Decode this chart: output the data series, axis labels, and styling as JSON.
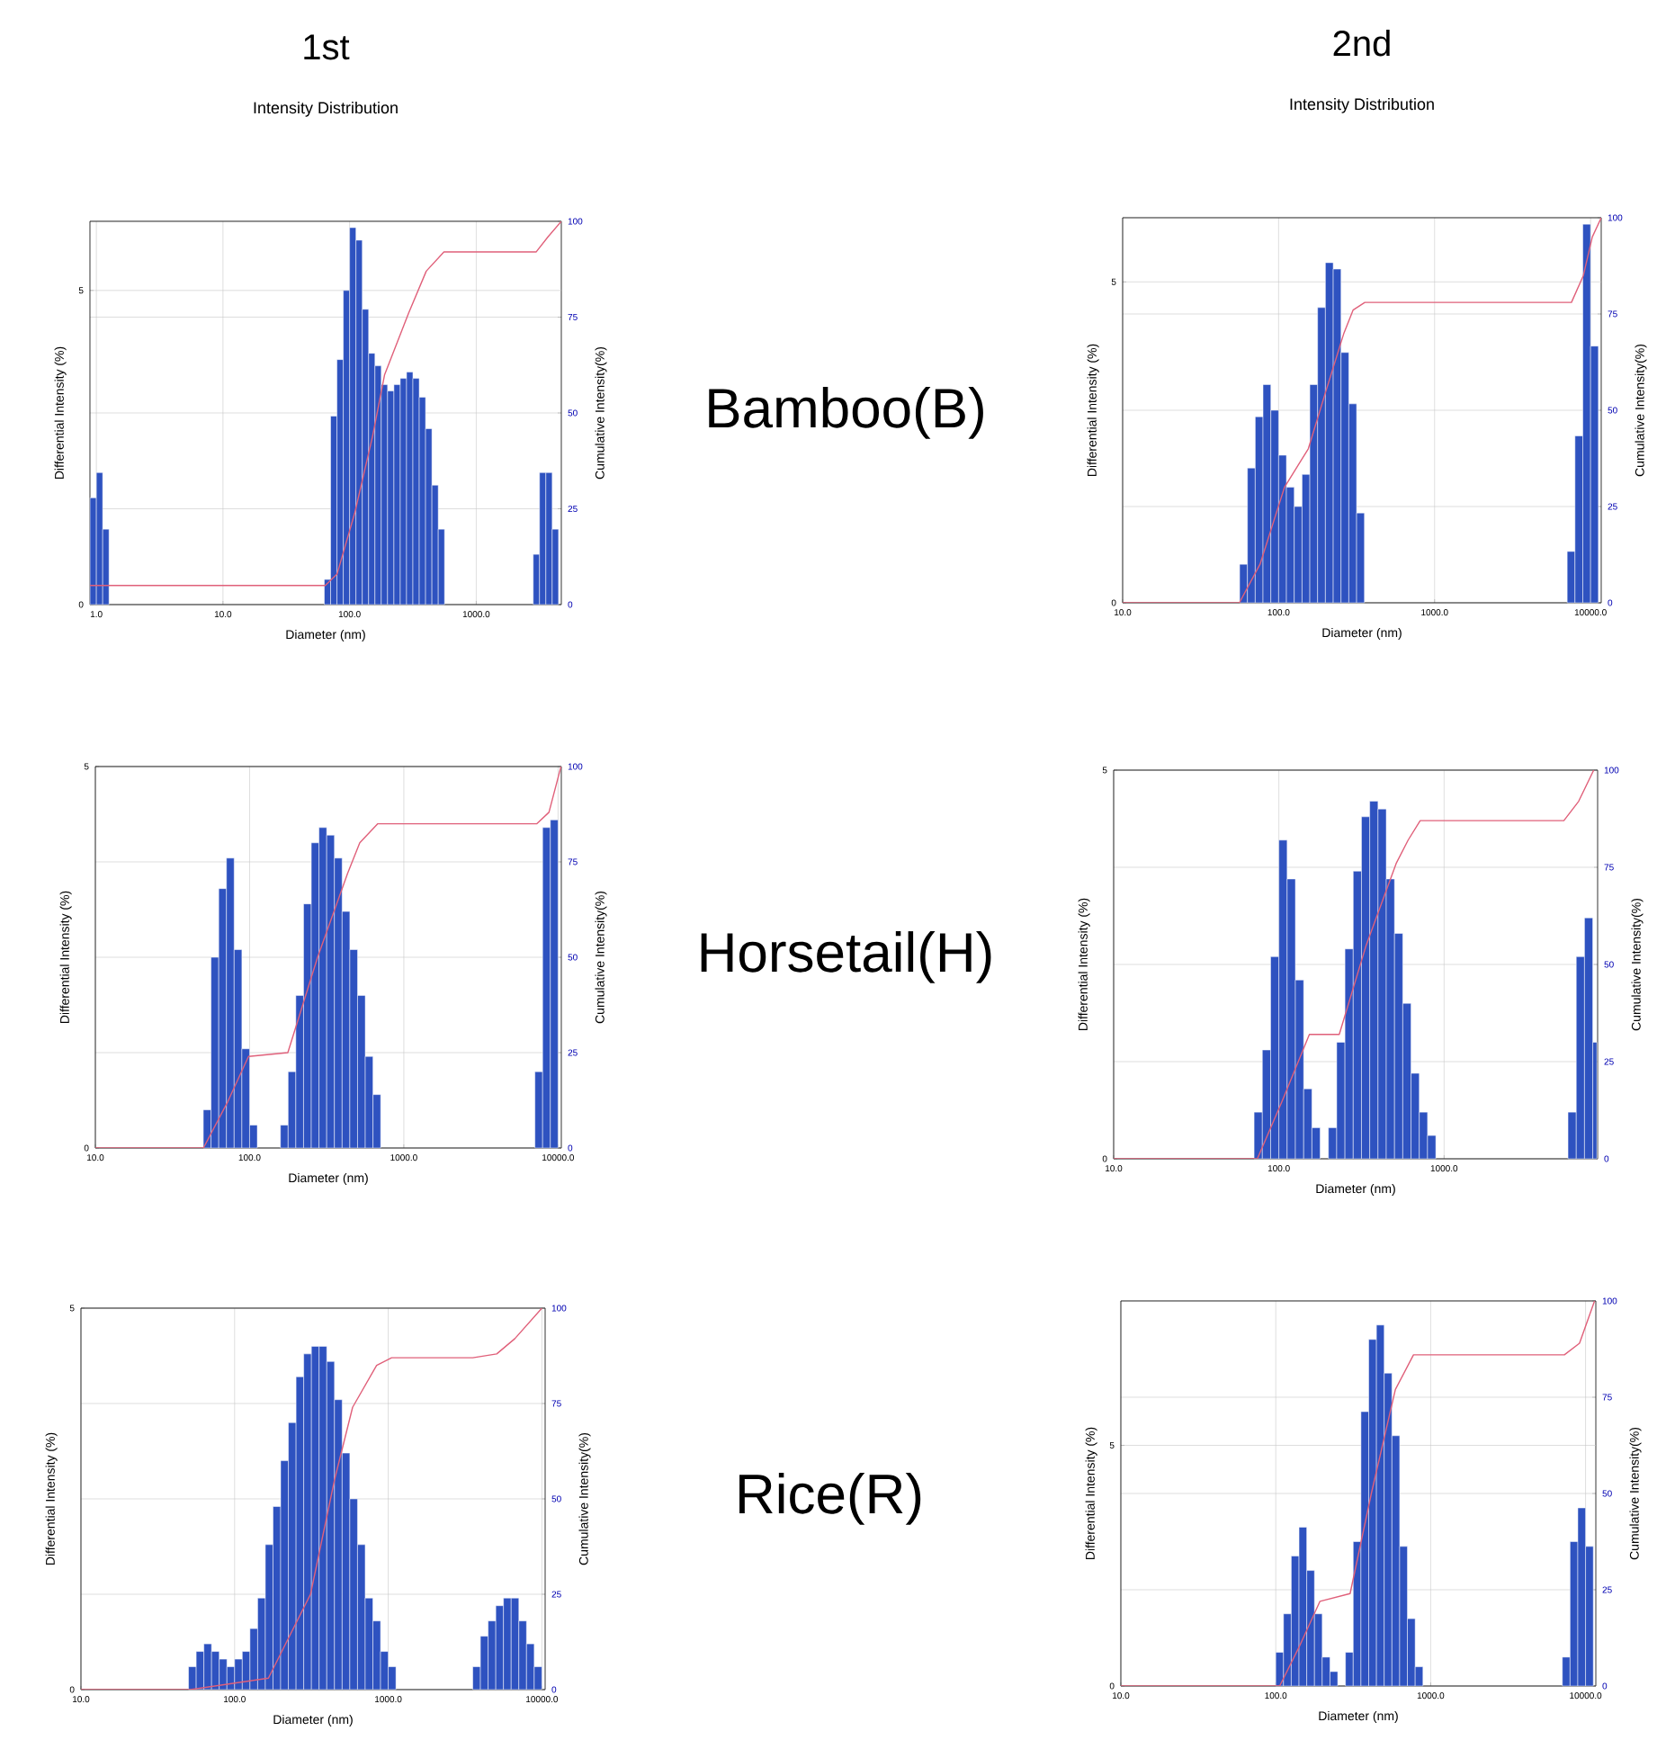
{
  "chart_data": [
    {
      "type": "histogram",
      "title": "1st",
      "subtitle": "Intensity Distribution",
      "annotations": [
        "Bamboo(B)"
      ],
      "xlabel": "Diameter (nm)",
      "ylabel": "Differential Intensity (%)",
      "y2label": "Cumulative Intensity(%)",
      "log": "x",
      "grid": true,
      "xlim": [
        0.89,
        4700
      ],
      "ylim": [
        0,
        6.1
      ],
      "y2lim": [
        0,
        100
      ],
      "xticks": [
        {
          "value": 1,
          "label": "1.0"
        },
        {
          "value": 10,
          "label": "10.0"
        },
        {
          "value": 100,
          "label": "100.0"
        },
        {
          "value": 1000,
          "label": "1000.0"
        }
      ],
      "yticks": [
        0,
        5
      ],
      "y2ticks": [
        0,
        25,
        50,
        75,
        100
      ],
      "series": [
        {
          "type": "histogram",
          "color": "#2e52c0",
          "bins": [
            0.891,
            1,
            1.122,
            1.259
          ],
          "values": [
            1.7,
            2.1,
            1.2
          ]
        },
        {
          "type": "histogram",
          "color": "#2e52c0",
          "bins": [
            63.1,
            70.79,
            79.43,
            89.13,
            100,
            112.2,
            125.9,
            141.3,
            158.5,
            177.8,
            199.5,
            223.9,
            251.2,
            281.8,
            316.2,
            354.8,
            398.1,
            446.7,
            501.2,
            562.3
          ],
          "values": [
            0.4,
            3.0,
            3.9,
            5.0,
            6.0,
            5.8,
            4.7,
            4.0,
            3.8,
            3.5,
            3.4,
            3.5,
            3.6,
            3.7,
            3.6,
            3.3,
            2.8,
            1.9,
            1.2
          ]
        },
        {
          "type": "histogram",
          "color": "#2e52c0",
          "bins": [
            2818,
            3162,
            3548,
            3981,
            4467
          ],
          "values": [
            0.8,
            2.1,
            2.1,
            1.2
          ]
        },
        {
          "type": "line",
          "axis": "y2",
          "color": "#e0607a",
          "x": [
            0.89,
            64.2,
            79.7,
            110,
            152,
            189,
            292,
            403,
            556,
            2970,
            3700,
            4700
          ],
          "values": [
            5,
            5,
            8,
            24,
            44,
            60,
            76,
            87,
            92,
            92,
            96,
            100
          ]
        }
      ]
    },
    {
      "type": "histogram",
      "title": "2nd",
      "subtitle": "Intensity Distribution",
      "xlabel": "Diameter (nm)",
      "ylabel": "Differential Intensity (%)",
      "y2label": "Cumulative Intensity(%)",
      "log": "x",
      "grid": true,
      "xlim": [
        10,
        11700
      ],
      "ylim": [
        0,
        6.0
      ],
      "y2lim": [
        0,
        100
      ],
      "xticks": [
        {
          "value": 10,
          "label": "10.0"
        },
        {
          "value": 100,
          "label": "100.0"
        },
        {
          "value": 1000,
          "label": "1000.0"
        },
        {
          "value": 10000,
          "label": "10000.0"
        }
      ],
      "yticks": [
        0,
        5
      ],
      "y2ticks": [
        0,
        25,
        50,
        75,
        100
      ],
      "series": [
        {
          "type": "histogram",
          "color": "#2e52c0",
          "bins": [
            56.23,
            63.1,
            70.79,
            79.43,
            89.13,
            100,
            112.2,
            125.9,
            141.3,
            158.5,
            177.8,
            199.5,
            223.9,
            251.2,
            281.8,
            316.2,
            354.8
          ],
          "values": [
            0.6,
            2.1,
            2.9,
            3.4,
            3.0,
            2.3,
            1.8,
            1.5,
            2.0,
            3.4,
            4.6,
            5.3,
            5.2,
            3.9,
            3.1,
            1.4
          ]
        },
        {
          "type": "histogram",
          "color": "#2e52c0",
          "bins": [
            7079,
            7943,
            8913,
            10000,
            11220
          ],
          "values": [
            0.8,
            2.6,
            5.9,
            4.0
          ]
        },
        {
          "type": "line",
          "axis": "y2",
          "color": "#e0607a",
          "x": [
            10,
            56,
            76,
            109,
            155,
            201,
            262,
            300,
            357,
            7540,
            8990,
            10260,
            11700
          ],
          "values": [
            0,
            0,
            10,
            30,
            40,
            55,
            70,
            76,
            78,
            78,
            85,
            95,
            100
          ]
        }
      ]
    },
    {
      "type": "histogram",
      "annotations": [
        "Horsetail(H)"
      ],
      "xlabel": "Diameter (nm)",
      "ylabel": "Differential Intensity (%)",
      "y2label": "Cumulative Intensity(%)",
      "log": "x",
      "grid": true,
      "xlim": [
        10,
        10500
      ],
      "ylim": [
        0,
        5
      ],
      "y2lim": [
        0,
        100
      ],
      "xticks": [
        {
          "value": 10,
          "label": "10.0"
        },
        {
          "value": 100,
          "label": "100.0"
        },
        {
          "value": 1000,
          "label": "1000.0"
        },
        {
          "value": 10000,
          "label": "10000.0"
        }
      ],
      "yticks": [
        0,
        5
      ],
      "y2ticks": [
        0,
        25,
        50,
        75,
        100
      ],
      "series": [
        {
          "type": "histogram",
          "color": "#2e52c0",
          "bins": [
            50.12,
            56.23,
            63.1,
            70.79,
            79.43,
            89.13,
            100,
            112.2
          ],
          "values": [
            0.5,
            2.5,
            3.4,
            3.8,
            2.6,
            1.3,
            0.3
          ]
        },
        {
          "type": "histogram",
          "color": "#2e52c0",
          "bins": [
            158.5,
            177.8,
            199.5,
            223.9,
            251.2,
            281.8,
            316.2,
            354.8,
            398.1,
            446.7,
            501.2,
            562.3,
            631.0,
            707.9
          ],
          "values": [
            0.3,
            1.0,
            2.0,
            3.2,
            4.0,
            4.2,
            4.1,
            3.8,
            3.1,
            2.6,
            2.0,
            1.2,
            0.7
          ]
        },
        {
          "type": "histogram",
          "color": "#2e52c0",
          "bins": [
            7079,
            7943,
            8913,
            10000
          ],
          "values": [
            1.0,
            4.2,
            4.3
          ]
        },
        {
          "type": "line",
          "axis": "y2",
          "color": "#e0607a",
          "x": [
            10,
            50.2,
            71.9,
            98.4,
            177,
            276,
            432,
            518,
            678,
            7290,
            8730,
            10450
          ],
          "values": [
            0,
            0,
            12,
            24,
            25,
            50,
            72,
            80,
            85,
            85,
            88,
            100
          ]
        }
      ]
    },
    {
      "type": "histogram",
      "xlabel": "Diameter (nm)",
      "ylabel": "Differential Intensity (%)",
      "y2label": "Cumulative Intensity(%)",
      "log": "x",
      "grid": true,
      "xlim": [
        10,
        8500
      ],
      "ylim": [
        0,
        5
      ],
      "y2lim": [
        0,
        100
      ],
      "xticks": [
        {
          "value": 10,
          "label": "10.0"
        },
        {
          "value": 100,
          "label": "100.0"
        },
        {
          "value": 1000,
          "label": "1000.0"
        }
      ],
      "yticks": [
        0,
        5
      ],
      "y2ticks": [
        0,
        25,
        50,
        75,
        100
      ],
      "series": [
        {
          "type": "histogram",
          "color": "#2e52c0",
          "bins": [
            70.79,
            79.43,
            89.13,
            100,
            112.2,
            125.9,
            141.3,
            158.5,
            177.8
          ],
          "values": [
            0.6,
            1.4,
            2.6,
            4.1,
            3.6,
            2.3,
            0.9,
            0.4
          ]
        },
        {
          "type": "histogram",
          "color": "#2e52c0",
          "bins": [
            199.5,
            223.9,
            251.2,
            281.8,
            316.2,
            354.8,
            398.1,
            446.7,
            501.2,
            562.3,
            631.0,
            707.9,
            794.3,
            891.3
          ],
          "values": [
            0.4,
            1.5,
            2.7,
            3.7,
            4.4,
            4.6,
            4.5,
            3.6,
            2.9,
            2.0,
            1.1,
            0.6,
            0.3
          ]
        },
        {
          "type": "histogram",
          "color": "#2e52c0",
          "bins": [
            5623,
            6310,
            7079,
            7943,
            8414
          ],
          "values": [
            0.6,
            2.6,
            3.1,
            1.5
          ]
        },
        {
          "type": "line",
          "axis": "y2",
          "color": "#e0607a",
          "x": [
            10,
            74.1,
            105,
            153,
            232,
            338,
            513,
            606,
            717,
            5310,
            6530,
            8050
          ],
          "values": [
            0,
            0,
            15,
            32,
            32,
            55,
            76,
            82,
            87,
            87,
            92,
            100
          ]
        }
      ]
    },
    {
      "type": "histogram",
      "annotations": [
        "Rice(R)"
      ],
      "xlabel": "Diameter (nm)",
      "ylabel": "Differential Intensity (%)",
      "y2label": "Cumulative Intensity(%)",
      "log": "x",
      "grid": true,
      "xlim": [
        10,
        10500
      ],
      "ylim": [
        0,
        5
      ],
      "y2lim": [
        0,
        100
      ],
      "xticks": [
        {
          "value": 10,
          "label": "10.0"
        },
        {
          "value": 100,
          "label": "100.0"
        },
        {
          "value": 1000,
          "label": "1000.0"
        },
        {
          "value": 10000,
          "label": "10000.0"
        }
      ],
      "yticks": [
        0,
        5
      ],
      "y2ticks": [
        0,
        25,
        50,
        75,
        100
      ],
      "series": [
        {
          "type": "histogram",
          "color": "#2e52c0",
          "bins": [
            50.12,
            56.23,
            63.1,
            70.79,
            79.43,
            89.13,
            100,
            112.2,
            125.9,
            141.3,
            158.5,
            177.8,
            199.5,
            223.9,
            251.2,
            281.8,
            316.2,
            354.8,
            398.1,
            446.7,
            501.2,
            562.3,
            631.0,
            707.9,
            794.3,
            891.3,
            1000,
            1122
          ],
          "values": [
            0.3,
            0.5,
            0.6,
            0.5,
            0.4,
            0.3,
            0.4,
            0.5,
            0.8,
            1.2,
            1.9,
            2.4,
            3.0,
            3.5,
            4.1,
            4.4,
            4.5,
            4.5,
            4.3,
            3.8,
            3.1,
            2.5,
            1.9,
            1.2,
            0.9,
            0.5,
            0.3
          ]
        },
        {
          "type": "histogram",
          "color": "#2e52c0",
          "bins": [
            3548,
            3981,
            4467,
            5012,
            5623,
            6310,
            7079,
            7943,
            8913,
            10000
          ],
          "values": [
            0.3,
            0.7,
            0.9,
            1.1,
            1.2,
            1.2,
            0.9,
            0.6,
            0.3
          ]
        },
        {
          "type": "line",
          "axis": "y2",
          "color": "#e0607a",
          "x": [
            10,
            51.5,
            166,
            312,
            447,
            586,
            840,
            1052,
            3550,
            5080,
            6670,
            10000
          ],
          "values": [
            0,
            0,
            3,
            25,
            55,
            74,
            85,
            87,
            87,
            88,
            92,
            100
          ]
        }
      ]
    },
    {
      "type": "histogram",
      "xlabel": "Diameter (nm)",
      "ylabel": "Differential Intensity (%)",
      "y2label": "Cumulative Intensity(%)",
      "log": "x",
      "grid": true,
      "xlim": [
        10,
        11650
      ],
      "ylim": [
        0,
        8.0
      ],
      "y2lim": [
        0,
        100
      ],
      "xticks": [
        {
          "value": 10,
          "label": "10.0"
        },
        {
          "value": 100,
          "label": "100.0"
        },
        {
          "value": 1000,
          "label": "1000.0"
        },
        {
          "value": 10000,
          "label": "10000.0"
        }
      ],
      "yticks": [
        0,
        5
      ],
      "y2ticks": [
        0,
        25,
        50,
        75,
        100
      ],
      "series": [
        {
          "type": "histogram",
          "color": "#2e52c0",
          "bins": [
            100,
            112.2,
            125.9,
            141.3,
            158.5,
            177.8,
            199.5,
            223.9,
            251.2
          ],
          "values": [
            0.7,
            1.5,
            2.7,
            3.3,
            2.4,
            1.5,
            0.6,
            0.3
          ]
        },
        {
          "type": "histogram",
          "color": "#2e52c0",
          "bins": [
            281.8,
            316.2,
            354.8,
            398.1,
            446.7,
            501.2,
            562.3,
            631.0,
            707.9,
            794.3,
            891.3
          ],
          "values": [
            0.7,
            3.0,
            5.7,
            7.2,
            7.5,
            6.5,
            5.2,
            2.9,
            1.4,
            0.4
          ]
        },
        {
          "type": "histogram",
          "color": "#2e52c0",
          "bins": [
            7079,
            7943,
            8913,
            10000,
            11220
          ],
          "values": [
            0.6,
            3.0,
            3.7,
            2.9
          ]
        },
        {
          "type": "line",
          "axis": "y2",
          "color": "#e0607a",
          "x": [
            10,
            106,
            141,
            193,
            302,
            414,
            592,
            775,
            7300,
            9140,
            11430
          ],
          "values": [
            0,
            0,
            10,
            22,
            24,
            50,
            77,
            86,
            86,
            89,
            100
          ]
        }
      ]
    }
  ]
}
